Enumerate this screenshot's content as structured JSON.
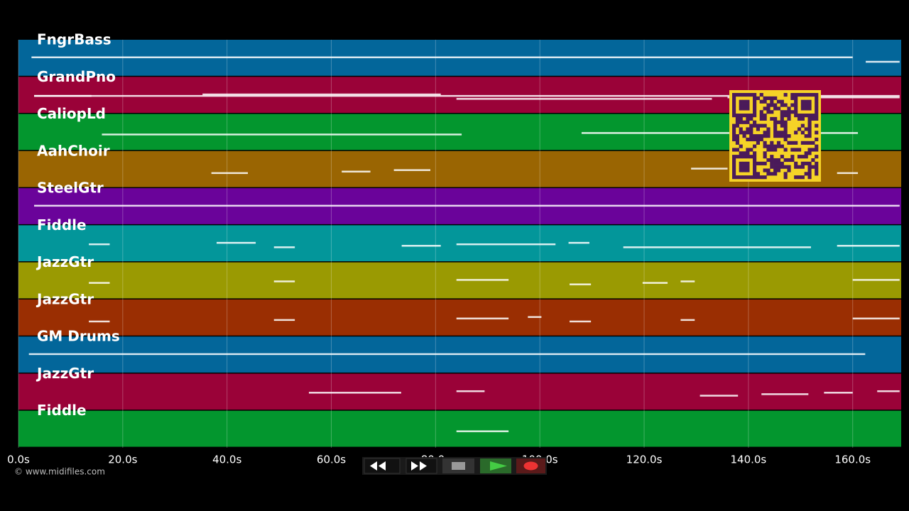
{
  "chart_data": {
    "type": "piano-roll",
    "xlim": [
      0,
      169.3
    ],
    "xticks": [
      {
        "value": 0,
        "label": "0.0s"
      },
      {
        "value": 20,
        "label": "20.0s"
      },
      {
        "value": 40,
        "label": "40.0s"
      },
      {
        "value": 60,
        "label": "60.0s"
      },
      {
        "value": 80,
        "label": "80.0s"
      },
      {
        "value": 100,
        "label": "100.0s"
      },
      {
        "value": 120,
        "label": "120.0s"
      },
      {
        "value": 140,
        "label": "140.0s"
      },
      {
        "value": 160,
        "label": "160.0s"
      }
    ],
    "grid": true,
    "tracks": [
      {
        "name": "FngrBass",
        "color": "#03669a",
        "notes": [
          [
            2.5,
            160
          ],
          [
            162.5,
            169
          ]
        ]
      },
      {
        "name": "GrandPno",
        "color": "#9a0238",
        "notes": [
          [
            3,
            14
          ],
          [
            35.3,
            81
          ],
          [
            84,
            133
          ],
          [
            136,
            169
          ],
          [
            3,
            169
          ]
        ]
      },
      {
        "name": "CaliopLd",
        "color": "#03962e",
        "notes": [
          [
            16,
            85
          ],
          [
            108,
            161
          ]
        ]
      },
      {
        "name": "AahChoir",
        "color": "#9a6502",
        "notes": [
          [
            37,
            44
          ],
          [
            62,
            67.5
          ],
          [
            72,
            79
          ],
          [
            129,
            136
          ],
          [
            157,
            161
          ]
        ]
      },
      {
        "name": "SteelGtr",
        "color": "#6a039a",
        "notes": [
          [
            3,
            169
          ]
        ]
      },
      {
        "name": "Fiddle",
        "color": "#03969a",
        "notes": [
          [
            13.5,
            17.5
          ],
          [
            38,
            45.5
          ],
          [
            49,
            53
          ],
          [
            73.5,
            81
          ],
          [
            84,
            103
          ],
          [
            105.5,
            109.5
          ],
          [
            116,
            152
          ],
          [
            157,
            169
          ]
        ]
      },
      {
        "name": "JazzGtr",
        "color": "#9a9a02",
        "notes": [
          [
            13.5,
            17.5
          ],
          [
            49,
            53
          ],
          [
            84,
            94
          ],
          [
            105.7,
            109.8
          ],
          [
            119.7,
            124.5
          ],
          [
            127,
            129.7
          ],
          [
            160,
            169
          ]
        ]
      },
      {
        "name": "JazzGtr",
        "color": "#9a2e02",
        "notes": [
          [
            13.5,
            17.5
          ],
          [
            49,
            53
          ],
          [
            84,
            94
          ],
          [
            97.7,
            100.3
          ],
          [
            105.7,
            109.8
          ],
          [
            127,
            129.7
          ],
          [
            160,
            169
          ]
        ]
      },
      {
        "name": "GM Drums",
        "color": "#03669a",
        "notes": [
          [
            2,
            162.4
          ]
        ]
      },
      {
        "name": "JazzGtr",
        "color": "#9a0238",
        "notes": [
          [
            55.7,
            73.4
          ],
          [
            84,
            89.4
          ],
          [
            130.7,
            138
          ],
          [
            142.5,
            151.5
          ],
          [
            154.5,
            160
          ],
          [
            164.7,
            169
          ]
        ]
      },
      {
        "name": "Fiddle",
        "color": "#03962e",
        "notes": [
          [
            84,
            94
          ]
        ]
      }
    ]
  },
  "footer": "© www.midifiles.com"
}
